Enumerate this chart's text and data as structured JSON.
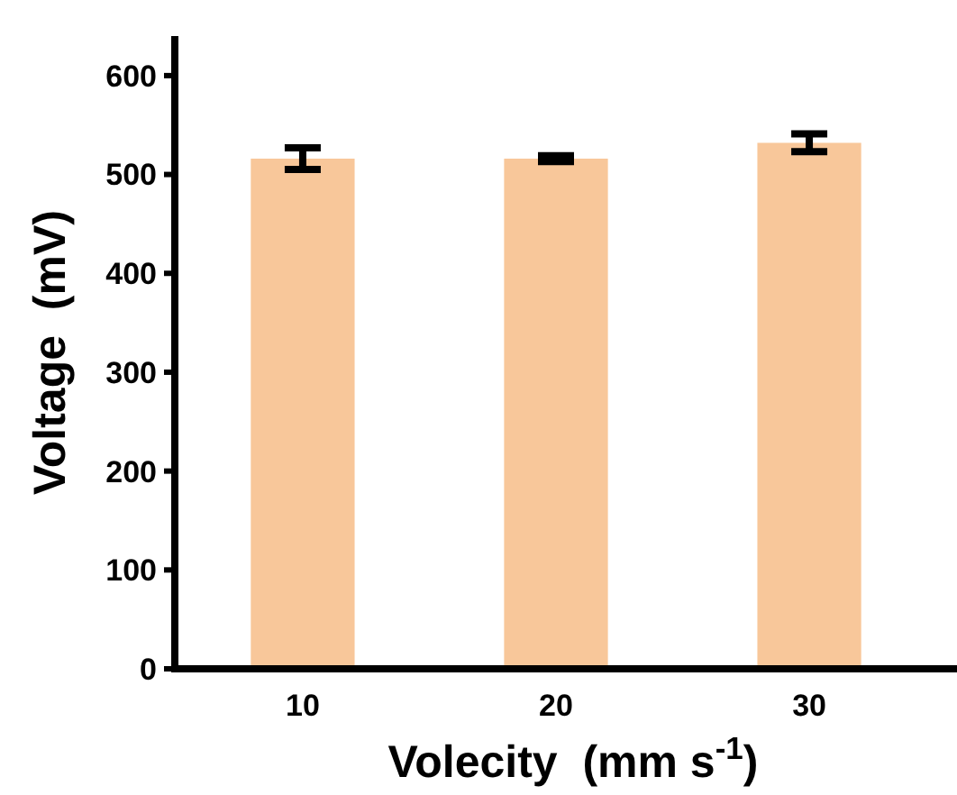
{
  "chart_data": {
    "type": "bar",
    "xlabel": "Volecity  (mm s$^{-1}$)",
    "ylabel": "Voltage  (mV)",
    "categories": [
      "10",
      "20",
      "30"
    ],
    "values": [
      516,
      516,
      532
    ],
    "errors": [
      11,
      3,
      9
    ],
    "color": "#f8c79a",
    "ylim": [
      0,
      640
    ],
    "yticks": [
      0,
      100,
      200,
      300,
      400,
      500,
      600
    ]
  }
}
